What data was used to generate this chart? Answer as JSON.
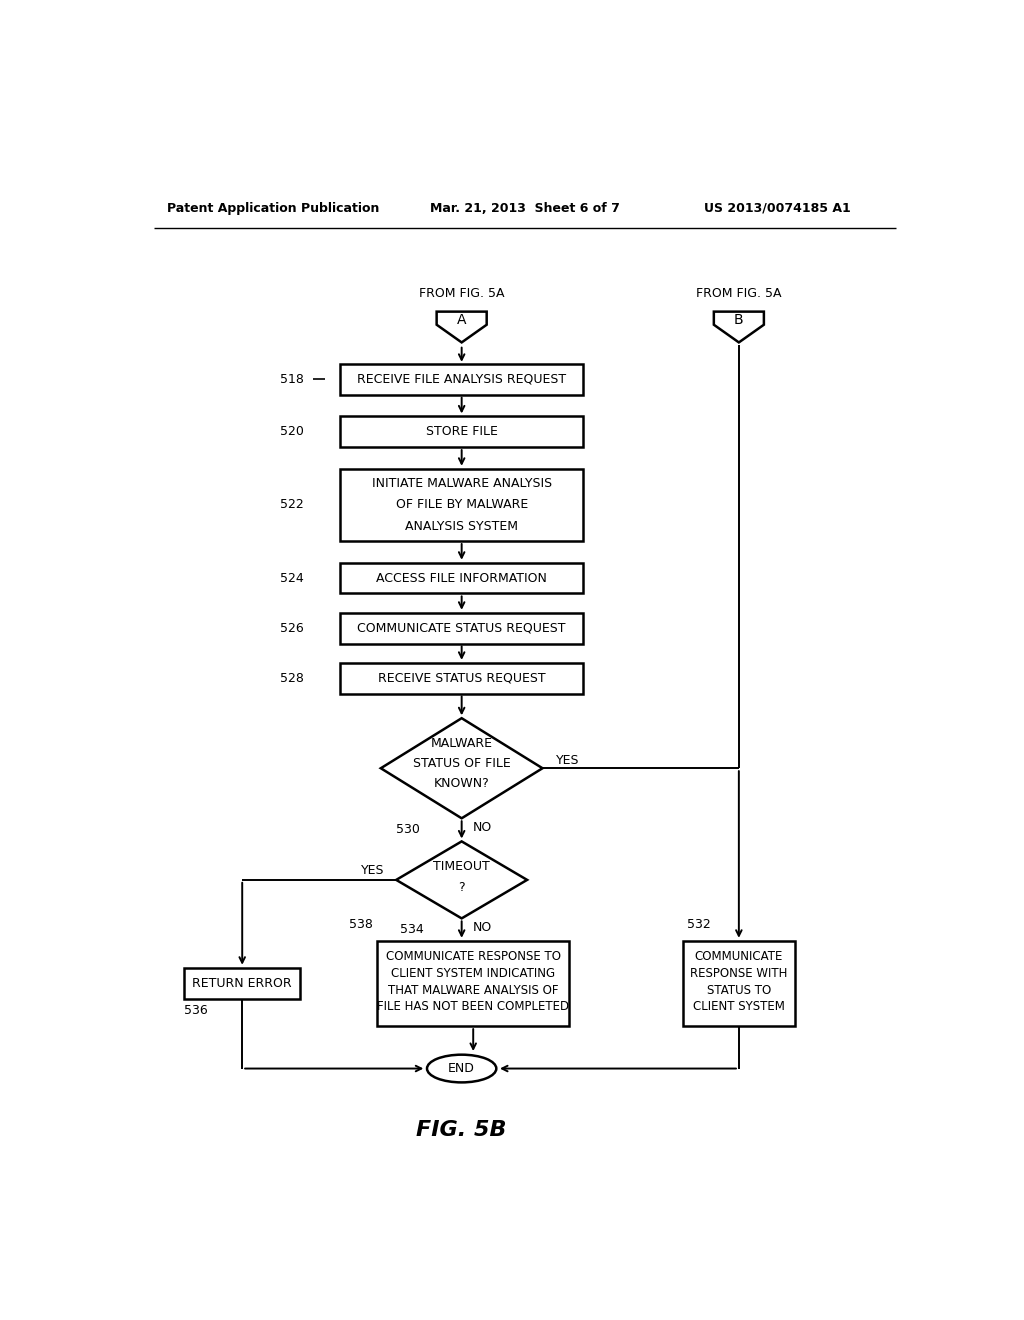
{
  "header_left": "Patent Application Publication",
  "header_mid": "Mar. 21, 2013  Sheet 6 of 7",
  "header_right": "US 2013/0074185 A1",
  "fig_title": "FIG. 5B",
  "bg_color": "#ffffff",
  "lw": 1.8,
  "alw": 1.4
}
